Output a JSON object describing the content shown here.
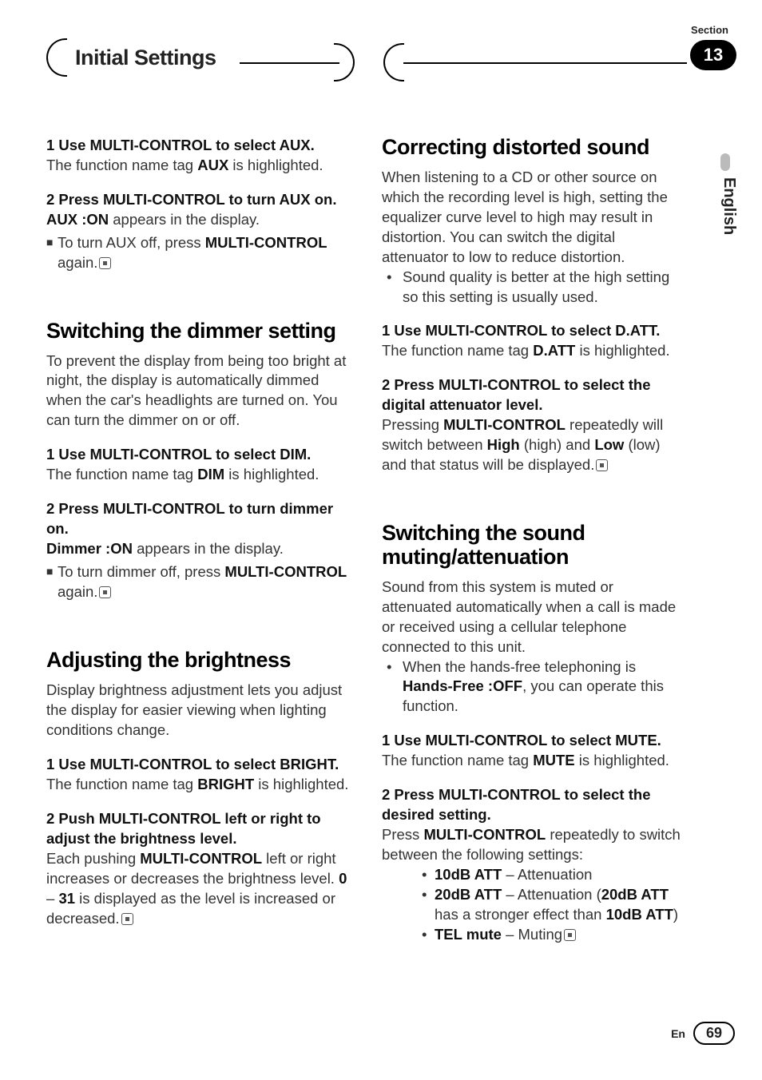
{
  "header": {
    "section_label": "Section",
    "chapter_title": "Initial Settings",
    "section_number": "13"
  },
  "side": {
    "language": "English"
  },
  "footer": {
    "lang_code": "En",
    "page_number": "69"
  },
  "left": {
    "aux": {
      "step1_title": "1    Use MULTI-CONTROL to select AUX.",
      "step1_body_pre": "The function name tag ",
      "step1_body_bold": "AUX",
      "step1_body_post": " is highlighted.",
      "step2_title": "2    Press MULTI-CONTROL to turn AUX on.",
      "step2_line1_bold": "AUX :ON",
      "step2_line1_post": " appears in the display.",
      "step2_note_pre": "To turn AUX off, press ",
      "step2_note_bold": "MULTI-CONTROL",
      "step2_note_post": " again."
    },
    "dimmer": {
      "heading": "Switching the dimmer setting",
      "intro": "To prevent the display from being too bright at night, the display is automatically dimmed when the car's headlights are turned on. You can turn the dimmer on or off.",
      "step1_title": "1    Use MULTI-CONTROL to select DIM.",
      "step1_body_pre": "The function name tag ",
      "step1_body_bold": "DIM",
      "step1_body_post": " is highlighted.",
      "step2_title": "2    Press MULTI-CONTROL to turn dimmer on.",
      "step2_line1_bold": "Dimmer :ON",
      "step2_line1_post": " appears in the display.",
      "step2_note_pre": "To turn dimmer off, press ",
      "step2_note_bold": "MULTI-CONTROL",
      "step2_note_post": " again."
    },
    "bright": {
      "heading": "Adjusting the brightness",
      "intro": "Display brightness adjustment lets you adjust the display for easier viewing when lighting conditions change.",
      "step1_title": "1    Use MULTI-CONTROL to select BRIGHT.",
      "step1_body_pre": "The function name tag ",
      "step1_body_bold": "BRIGHT",
      "step1_body_post": " is highlighted.",
      "step2_title": "2    Push MULTI-CONTROL left or right to adjust the brightness level.",
      "step2_body_a": "Each pushing ",
      "step2_body_b": "MULTI-CONTROL",
      "step2_body_c": " left or right increases or decreases the brightness level. ",
      "step2_body_d": "0",
      "step2_body_e": " – ",
      "step2_body_f": "31",
      "step2_body_g": " is displayed as the level is increased or decreased."
    }
  },
  "right": {
    "datt": {
      "heading": "Correcting distorted sound",
      "intro": "When listening to a CD or other source on which the recording level is high, setting the equalizer curve level to high may result in distortion. You can switch the digital attenuator to low to reduce distortion.",
      "bullet": "Sound quality is better at the high setting so this setting is usually used.",
      "step1_title": "1    Use MULTI-CONTROL to select D.ATT.",
      "step1_body_pre": "The function name tag ",
      "step1_body_bold": "D.ATT",
      "step1_body_post": " is highlighted.",
      "step2_title": "2    Press MULTI-CONTROL to select the digital attenuator level.",
      "step2_body_a": "Pressing ",
      "step2_body_b": "MULTI-CONTROL",
      "step2_body_c": " repeatedly will switch between ",
      "step2_body_d": "High",
      "step2_body_e": " (high) and ",
      "step2_body_f": "Low",
      "step2_body_g": " (low) and that status will be displayed."
    },
    "mute": {
      "heading": "Switching the sound muting/attenuation",
      "intro": "Sound from this system is muted or attenuated automatically when a call is made or received using a cellular telephone connected to this unit.",
      "bullet_a": "When the hands-free telephoning is ",
      "bullet_b": "Hands-Free :OFF",
      "bullet_c": ", you can operate this function.",
      "step1_title": "1    Use MULTI-CONTROL to select MUTE.",
      "step1_body_pre": "The function name tag ",
      "step1_body_bold": "MUTE",
      "step1_body_post": " is highlighted.",
      "step2_title": "2    Press MULTI-CONTROL to select the desired setting.",
      "step2_body_a": "Press ",
      "step2_body_b": "MULTI-CONTROL",
      "step2_body_c": " repeatedly to switch between the following settings:",
      "opt1_a": "10dB ATT",
      "opt1_b": " – Attenuation",
      "opt2_a": "20dB ATT",
      "opt2_b": " – Attenuation (",
      "opt2_c": "20dB ATT",
      "opt2_d": " has a stronger effect than ",
      "opt2_e": "10dB ATT",
      "opt2_f": ")",
      "opt3_a": "TEL mute",
      "opt3_b": " – Muting"
    }
  }
}
